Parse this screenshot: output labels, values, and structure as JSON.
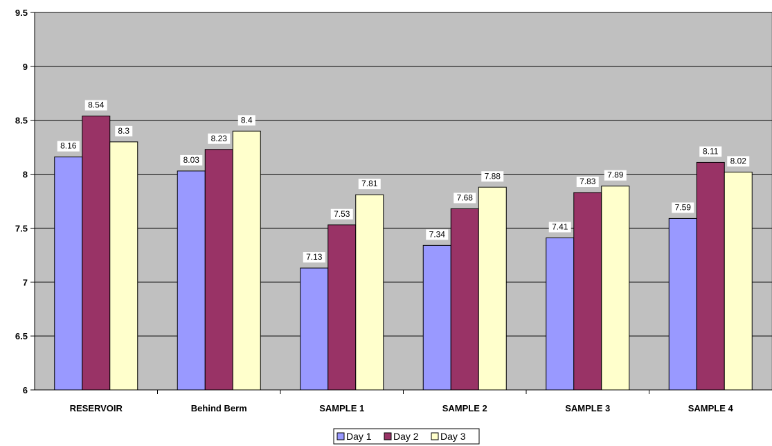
{
  "chart_data": {
    "type": "bar",
    "categories": [
      "RESERVOIR",
      "Behind Berm",
      "SAMPLE 1",
      "SAMPLE 2",
      "SAMPLE 3",
      "SAMPLE 4"
    ],
    "series": [
      {
        "name": "Day 1",
        "values": [
          8.16,
          8.03,
          7.13,
          7.34,
          7.41,
          7.59
        ],
        "color": "#9999ff"
      },
      {
        "name": "Day 2",
        "values": [
          8.54,
          8.23,
          7.53,
          7.68,
          7.83,
          8.11
        ],
        "color": "#993366"
      },
      {
        "name": "Day 3",
        "values": [
          8.3,
          8.4,
          7.81,
          7.88,
          7.89,
          8.02
        ],
        "color": "#ffffcc"
      }
    ],
    "title": "",
    "xlabel": "",
    "ylabel": "",
    "ylim": [
      6,
      9.5
    ],
    "y_ticks": [
      "6",
      "6.5",
      "7",
      "7.5",
      "8",
      "8.5",
      "9",
      "9.5"
    ],
    "data_labels": true,
    "grid": true,
    "legend_position": "bottom",
    "plot_background": "#c0c0c0"
  }
}
